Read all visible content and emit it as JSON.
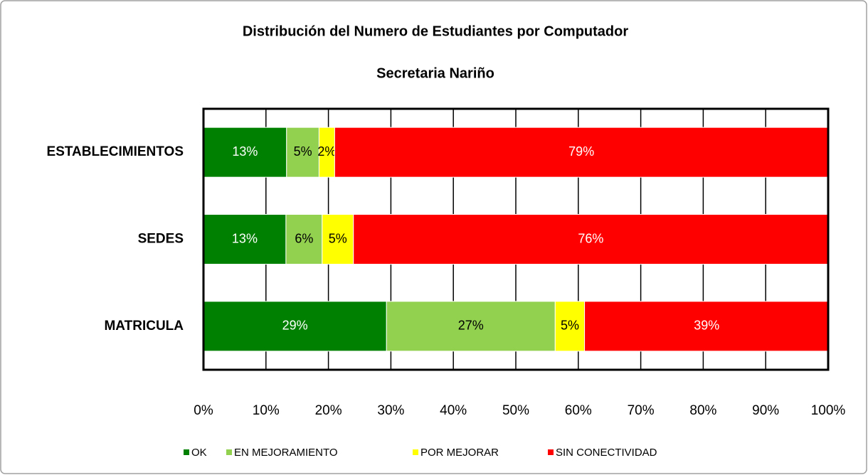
{
  "chart_data": {
    "type": "stacked-bar-horizontal",
    "title": "Distribución del Numero de Estudiantes por Computador",
    "subtitle": "Secretaria Nariño",
    "categories": [
      "ESTABLECIMIENTOS",
      "SEDES",
      "MATRICULA"
    ],
    "series": [
      {
        "name": "OK",
        "color": "#008000",
        "label_color": "#ffffff",
        "values": [
          13.3,
          13.2,
          29.3
        ],
        "value_labels": [
          "13%",
          "13%",
          "29%"
        ]
      },
      {
        "name": "EN MEJORAMIENTO",
        "color": "#92d050",
        "label_color": "#000000",
        "values": [
          5.2,
          5.8,
          27.0
        ],
        "value_labels": [
          "5%",
          "6%",
          "27%"
        ]
      },
      {
        "name": "POR MEJORAR",
        "color": "#ffff00",
        "label_color": "#000000",
        "values": [
          2.5,
          5.0,
          4.7
        ],
        "value_labels": [
          "2%",
          "5%",
          "5%"
        ]
      },
      {
        "name": "SIN CONECTIVIDAD",
        "color": "#ff0000",
        "label_color": "#ffffff",
        "values": [
          79.0,
          76.0,
          39.1
        ],
        "value_labels": [
          "79%",
          "76%",
          "39%"
        ]
      }
    ],
    "xlim": [
      0,
      100
    ],
    "xticks": [
      {
        "value": 0,
        "label": "0%"
      },
      {
        "value": 10,
        "label": "10%"
      },
      {
        "value": 20,
        "label": "20%"
      },
      {
        "value": 30,
        "label": "30%"
      },
      {
        "value": 40,
        "label": "40%"
      },
      {
        "value": 50,
        "label": "50%"
      },
      {
        "value": 60,
        "label": "60%"
      },
      {
        "value": 70,
        "label": "70%"
      },
      {
        "value": 80,
        "label": "80%"
      },
      {
        "value": 90,
        "label": "90%"
      },
      {
        "value": 100,
        "label": "100%"
      }
    ],
    "grid": true,
    "legend": "bottom"
  }
}
